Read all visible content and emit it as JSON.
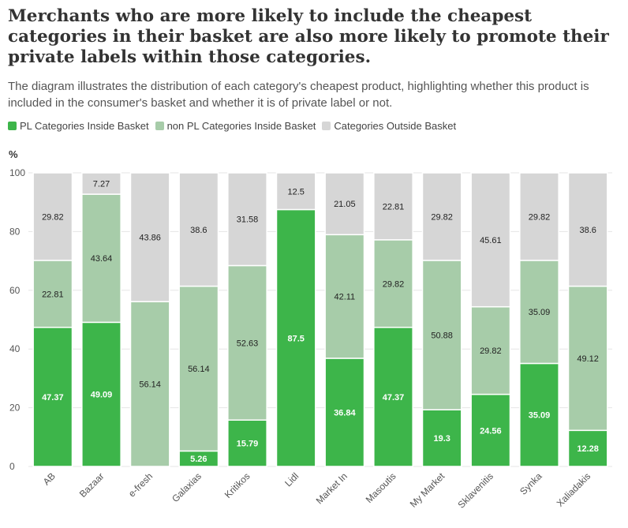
{
  "title": "Merchants who are more likely to include the cheapest categories in their basket are also more likely to promote their private labels within those categories.",
  "subtitle": "The diagram illustrates the distribution of each category's cheapest product, highlighting whether this product is included in the consumer's basket and whether it is of private label or not.",
  "colors": {
    "pl": "#3db54a",
    "non_pl": "#a7cca9",
    "outside": "#d6d6d6"
  },
  "chart_data": {
    "type": "bar",
    "stacked": true,
    "ylabel": "%",
    "ylim": [
      0,
      100
    ],
    "yticks": [
      0,
      20,
      40,
      60,
      80,
      100
    ],
    "grid": true,
    "legend_position": "top-left",
    "categories": [
      "AB",
      "Bazaar",
      "e-fresh",
      "Galaxias",
      "Kritikos",
      "Lidl",
      "Market In",
      "Masoutis",
      "My Market",
      "Sklavenitis",
      "Synka",
      "Xaliadakis"
    ],
    "series": [
      {
        "name": "PL Categories Inside Basket",
        "values": [
          47.37,
          49.09,
          0,
          5.26,
          15.79,
          87.5,
          36.84,
          47.37,
          19.3,
          24.56,
          35.09,
          12.28
        ]
      },
      {
        "name": "non PL Categories Inside Basket",
        "values": [
          22.81,
          43.64,
          56.14,
          56.14,
          52.63,
          0,
          42.11,
          29.82,
          50.88,
          29.82,
          35.09,
          49.12
        ]
      },
      {
        "name": "Categories Outside Basket",
        "values": [
          29.82,
          7.27,
          43.86,
          38.6,
          31.58,
          12.5,
          21.05,
          22.81,
          29.82,
          45.61,
          29.82,
          38.6
        ]
      }
    ]
  }
}
